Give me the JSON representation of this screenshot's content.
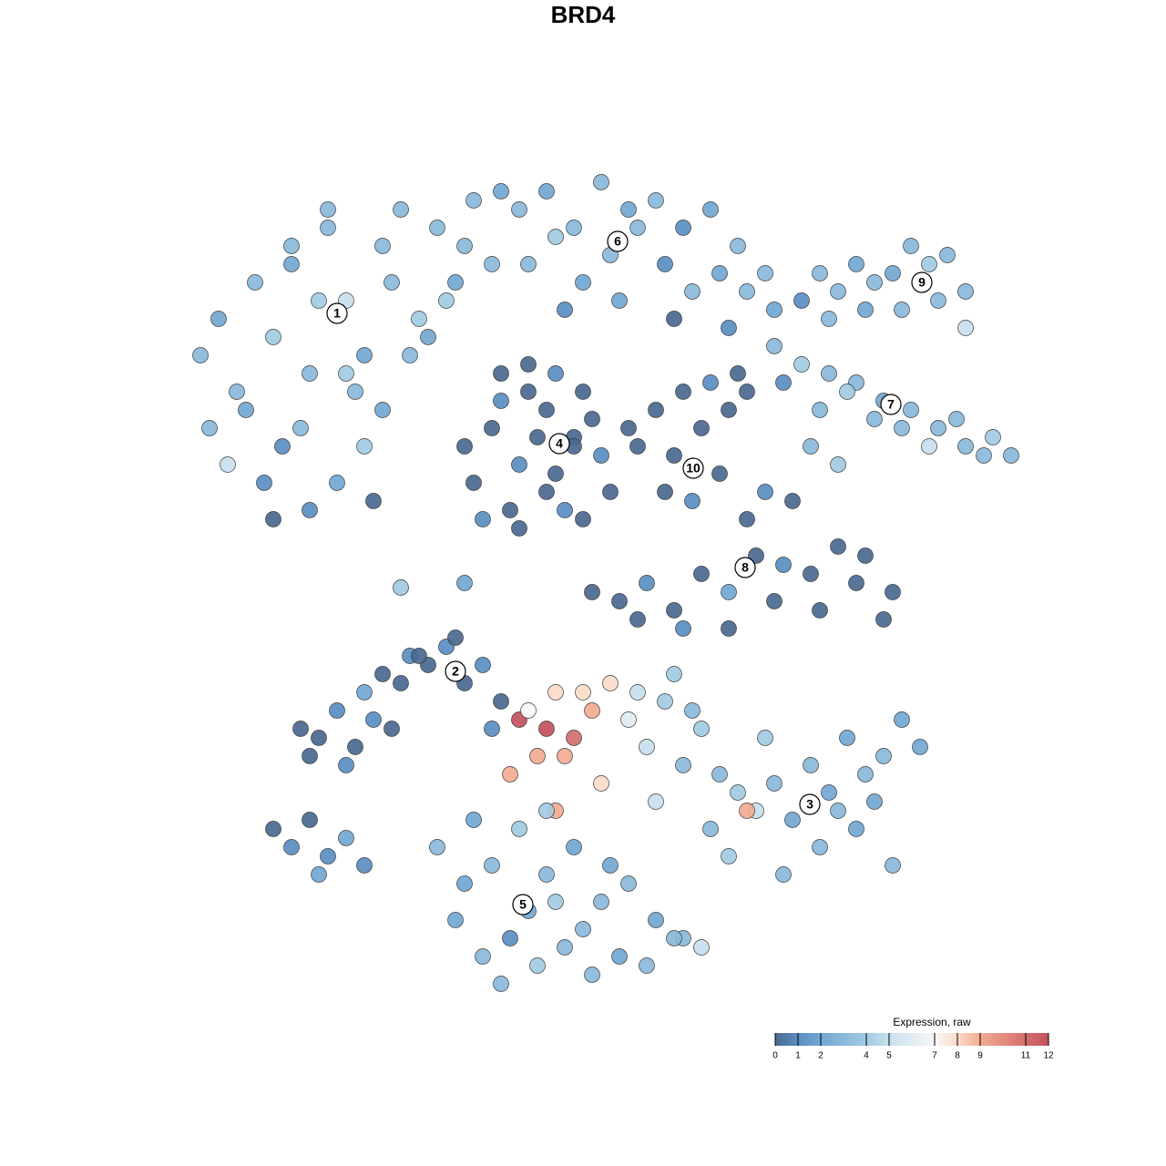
{
  "chart_data": {
    "type": "scatter",
    "title": "BRD4",
    "xlim": [
      0,
      93
    ],
    "ylim": [
      0,
      90.5
    ],
    "colorbar": {
      "title": "Expression, raw",
      "lim": [
        0,
        12
      ],
      "ticks": [
        0,
        1,
        2,
        4,
        5,
        7,
        8,
        9,
        11,
        12
      ],
      "colorscale": [
        {
          "value": 0,
          "color": "#4a6990"
        },
        {
          "value": 1,
          "color": "#5a8ec2"
        },
        {
          "value": 2,
          "color": "#72a7d2"
        },
        {
          "value": 4,
          "color": "#a2cbe2"
        },
        {
          "value": 5,
          "color": "#c9e0ee"
        },
        {
          "value": 7,
          "color": "#f7f7f7"
        },
        {
          "value": 8,
          "color": "#fbdcc9"
        },
        {
          "value": 9,
          "color": "#f2ab90"
        },
        {
          "value": 12,
          "color": "#c4505e"
        }
      ]
    },
    "series": [
      {
        "label": "1",
        "label_x": 17,
        "label_y": 74.6,
        "x": [
          2,
          4,
          6,
          8,
          10,
          12,
          14,
          16,
          18,
          20,
          22,
          24,
          26,
          28,
          30,
          32,
          34,
          3,
          7,
          11,
          15,
          19,
          23,
          27,
          31,
          35,
          5,
          9,
          13,
          17,
          21,
          25,
          29,
          10,
          14,
          18,
          22,
          12,
          16,
          20
        ],
        "y": [
          70,
          74,
          66,
          78,
          72,
          80,
          68,
          84,
          76,
          70,
          82,
          86,
          74,
          84,
          78,
          87,
          80,
          62,
          64,
          60,
          76,
          66,
          78,
          72,
          82,
          88,
          58,
          56,
          62,
          56,
          54,
          70,
          76,
          52,
          53,
          68,
          64,
          82,
          86,
          60
        ],
        "values": [
          3,
          2,
          3,
          3,
          4,
          2,
          3,
          3,
          5,
          2,
          3,
          3,
          4,
          3,
          2,
          3,
          3,
          3,
          2,
          1,
          4,
          3,
          3,
          2,
          3,
          2,
          5,
          1,
          3,
          2,
          0,
          3,
          4,
          0,
          1,
          4,
          2,
          3,
          3,
          4
        ]
      },
      {
        "label": "6",
        "label_x": 47.8,
        "label_y": 82.5,
        "x": [
          37,
          40,
          43,
          46,
          49,
          52,
          55,
          58,
          61,
          64,
          38,
          41,
          44,
          47,
          50,
          53,
          56,
          59,
          62,
          65,
          42,
          48,
          54,
          60
        ],
        "y": [
          86,
          88,
          84,
          89,
          86,
          87,
          84,
          86,
          82,
          79,
          80,
          83,
          78,
          81,
          84,
          80,
          77,
          79,
          77,
          75,
          75,
          76,
          74,
          73
        ],
        "values": [
          3,
          2,
          3,
          3,
          2,
          3,
          1,
          2,
          3,
          3,
          3,
          4,
          2,
          3,
          3,
          1,
          3,
          2,
          3,
          2,
          1,
          2,
          0,
          1
        ]
      },
      {
        "label": "4",
        "label_x": 41.4,
        "label_y": 60.3,
        "x": [
          31,
          34,
          37,
          40,
          43,
          46,
          32,
          35,
          38,
          41,
          44,
          47,
          33,
          36,
          39,
          42,
          45,
          35,
          38,
          41,
          44,
          37,
          40,
          43
        ],
        "y": [
          60,
          62,
          58,
          64,
          61,
          59,
          56,
          65,
          66,
          57,
          66,
          55,
          52,
          53,
          61,
          53,
          63,
          68,
          69,
          68,
          52,
          51,
          55,
          60
        ],
        "values": [
          0,
          0,
          1,
          0,
          0,
          1,
          0,
          1,
          0,
          0,
          0,
          0,
          1,
          0,
          0,
          1,
          0,
          0,
          0,
          1,
          0,
          0,
          0,
          0
        ]
      },
      {
        "label": "10",
        "label_x": 56.1,
        "label_y": 57.6,
        "x": [
          49,
          52,
          55,
          58,
          61,
          50,
          54,
          57,
          60,
          53,
          56,
          59,
          62
        ],
        "y": [
          62,
          64,
          66,
          67,
          68,
          60,
          59,
          62,
          64,
          55,
          54,
          57,
          66
        ],
        "values": [
          0,
          0,
          0,
          1,
          0,
          0,
          0,
          0,
          0,
          0,
          1,
          0,
          0
        ]
      },
      {
        "label": "9",
        "label_x": 81.2,
        "label_y": 78,
        "x": [
          68,
          70,
          72,
          74,
          76,
          78,
          80,
          82,
          84,
          86,
          71,
          75,
          79,
          83,
          86
        ],
        "y": [
          76,
          79,
          77,
          80,
          78,
          79,
          82,
          80,
          81,
          77,
          74,
          75,
          75,
          76,
          73
        ],
        "values": [
          1,
          3,
          3,
          2,
          3,
          2,
          3,
          4,
          3,
          3,
          3,
          2,
          3,
          3,
          5
        ]
      },
      {
        "label": "7",
        "label_x": 77.8,
        "label_y": 64.6,
        "x": [
          65,
          68,
          71,
          74,
          77,
          80,
          83,
          86,
          89,
          91,
          66,
          70,
          73,
          76,
          79,
          82,
          85,
          88,
          69,
          72
        ],
        "y": [
          71,
          69,
          68,
          67,
          65,
          64,
          62,
          60,
          61,
          59,
          67,
          64,
          66,
          63,
          62,
          60,
          63,
          59,
          60,
          58
        ],
        "values": [
          3,
          4,
          3,
          3,
          2,
          3,
          3,
          3,
          4,
          3,
          1,
          3,
          4,
          3,
          3,
          5,
          3,
          3,
          3,
          4
        ]
      },
      {
        "label": "8",
        "label_x": 61.8,
        "label_y": 46.7,
        "x": [
          45,
          48,
          51,
          54,
          57,
          60,
          63,
          66,
          69,
          72,
          75,
          78,
          50,
          55,
          60,
          65,
          70,
          74,
          77,
          62,
          64,
          67
        ],
        "y": [
          44,
          43,
          45,
          42,
          46,
          44,
          48,
          47,
          46,
          49,
          48,
          44,
          41,
          40,
          40,
          43,
          42,
          45,
          41,
          52,
          55,
          54
        ],
        "values": [
          0,
          0,
          1,
          0,
          0,
          2,
          0,
          1,
          0,
          0,
          0,
          0,
          0,
          1,
          0,
          0,
          0,
          0,
          0,
          0,
          1,
          0
        ]
      },
      {
        "label": "2",
        "label_x": 30,
        "label_y": 35.3,
        "x": [
          13,
          15,
          17,
          19,
          21,
          23,
          25,
          27,
          29,
          31,
          33,
          35,
          14,
          18,
          22,
          26,
          30,
          34,
          20,
          24
        ],
        "y": [
          29,
          28,
          31,
          27,
          30,
          29,
          37,
          36,
          38,
          34,
          36,
          32,
          26,
          25,
          35,
          37,
          39,
          29,
          33,
          34
        ],
        "values": [
          0,
          0,
          1,
          0,
          1,
          0,
          1,
          0,
          1,
          0,
          1,
          0,
          0,
          1,
          0,
          0,
          0,
          1,
          2,
          0
        ]
      },
      {
        "label": "3",
        "label_x": 68.9,
        "label_y": 20.7,
        "x": [
          37,
          39,
          41,
          43,
          45,
          47,
          49,
          51,
          53,
          55,
          57,
          59,
          61,
          63,
          65,
          67,
          69,
          71,
          73,
          75,
          77,
          79,
          81,
          38,
          40,
          42,
          44,
          36,
          41,
          46,
          62,
          50,
          54,
          58,
          60,
          66,
          70,
          74,
          78,
          52,
          56,
          64,
          72,
          76
        ],
        "y": [
          30,
          26,
          33,
          28,
          31,
          34,
          30,
          27,
          32,
          25,
          29,
          24,
          22,
          20,
          23,
          19,
          25,
          22,
          28,
          24,
          26,
          30,
          27,
          31,
          29,
          26,
          33,
          24,
          20,
          23,
          20,
          33,
          35,
          18,
          15,
          13,
          16,
          18,
          14,
          21,
          31,
          28,
          20,
          21
        ],
        "values": [
          12,
          9,
          8,
          11,
          9,
          8,
          6,
          5,
          4,
          3,
          4,
          3,
          4,
          5,
          3,
          2,
          3,
          2,
          2,
          3,
          3,
          2,
          2,
          7,
          12,
          9,
          8,
          9,
          9,
          8,
          9,
          5,
          4,
          3,
          4,
          3,
          3,
          2,
          3,
          5,
          3,
          4,
          3,
          2
        ]
      },
      {
        "label": "5",
        "label_x": 37.4,
        "label_y": 9.7,
        "x": [
          28,
          31,
          34,
          37,
          40,
          43,
          46,
          49,
          52,
          55,
          30,
          33,
          36,
          39,
          42,
          45,
          48,
          51,
          54,
          57,
          35,
          38,
          41,
          44,
          47,
          32,
          40
        ],
        "y": [
          16,
          12,
          14,
          18,
          13,
          16,
          10,
          12,
          8,
          6,
          8,
          4,
          6,
          3,
          5,
          2,
          4,
          3,
          6,
          5,
          1,
          9,
          10,
          7,
          14,
          19,
          20
        ],
        "values": [
          3,
          2,
          3,
          4,
          3,
          2,
          3,
          3,
          2,
          3,
          2,
          3,
          1,
          4,
          3,
          3,
          2,
          3,
          3,
          5,
          3,
          2,
          4,
          3,
          2,
          2,
          4
        ]
      },
      {
        "x": [
          10,
          12,
          14,
          16,
          18,
          20,
          15,
          24,
          31
        ],
        "y": [
          18,
          16,
          19,
          15,
          17,
          14,
          13,
          44.5,
          45
        ],
        "values": [
          0,
          1,
          0,
          1,
          2,
          1,
          2,
          4,
          2
        ]
      }
    ]
  }
}
